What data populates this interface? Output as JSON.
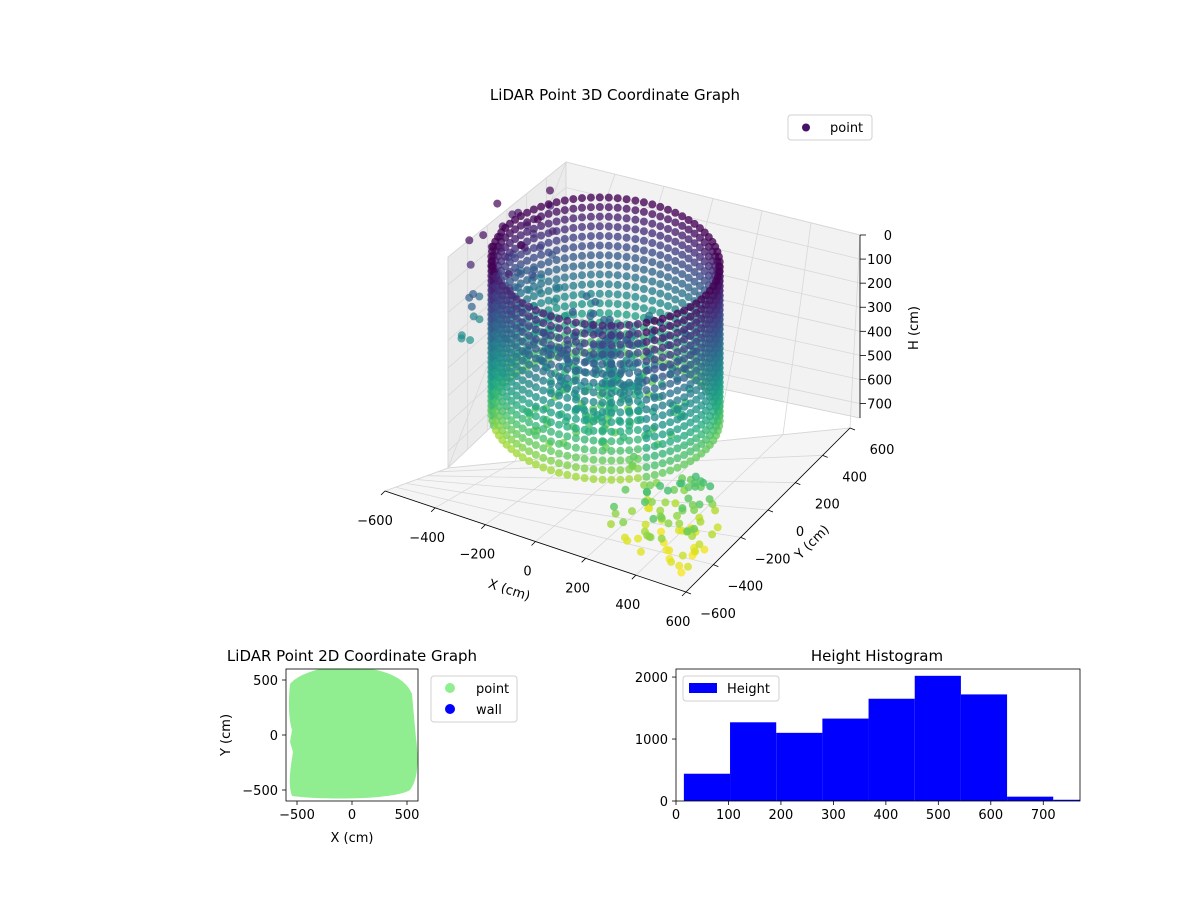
{
  "chart_data": [
    {
      "type": "scatter3d",
      "title": "LiDAR Point 3D Coordinate Graph",
      "xlabel": "X (cm)",
      "ylabel": "Y (cm)",
      "zlabel": "H (cm)",
      "xlim": [
        -600,
        600
      ],
      "ylim": [
        -600,
        600
      ],
      "zlim": [
        0,
        760
      ],
      "z_inverted": true,
      "x_ticks": [
        "−600",
        "−400",
        "−200",
        "0",
        "200",
        "400",
        "600"
      ],
      "y_ticks": [
        "−600",
        "−400",
        "−200",
        "0",
        "200",
        "400",
        "600"
      ],
      "z_ticks": [
        "0",
        "100",
        "200",
        "300",
        "400",
        "500",
        "600",
        "700"
      ],
      "legend": [
        {
          "name": "point",
          "color": "#44146a"
        }
      ],
      "legend_position": "upper-right",
      "colormap": "viridis",
      "description_series": {
        "wall_radius": 400,
        "wall_height_range": [
          0,
          650
        ]
      }
    },
    {
      "type": "scatter",
      "title": "LiDAR Point 2D Coordinate Graph",
      "xlabel": "X (cm)",
      "ylabel": "Y (cm)",
      "xlim": [
        -600,
        600
      ],
      "ylim": [
        -600,
        600
      ],
      "x_ticks": [
        "−500",
        "0",
        "500"
      ],
      "y_ticks": [
        "−500",
        "0",
        "500"
      ],
      "legend": [
        {
          "name": "point",
          "color": "#90ee90"
        },
        {
          "name": "wall",
          "color": "#0000ff"
        }
      ],
      "legend_position": "outside-right"
    },
    {
      "type": "bar",
      "title": "Height Histogram",
      "series": [
        {
          "name": "Height",
          "color": "#0000ff"
        }
      ],
      "bin_edges": [
        15,
        103,
        191,
        279,
        367,
        455,
        543,
        631,
        719,
        770
      ],
      "values": [
        440,
        1270,
        1100,
        1330,
        1650,
        2020,
        1720,
        70,
        20
      ],
      "xlim": [
        0,
        770
      ],
      "ylim": [
        0,
        2130
      ],
      "x_ticks": [
        "0",
        "100",
        "200",
        "300",
        "400",
        "500",
        "600",
        "700"
      ],
      "y_ticks": [
        "0",
        "1000",
        "2000"
      ],
      "legend_position": "upper-left"
    }
  ]
}
